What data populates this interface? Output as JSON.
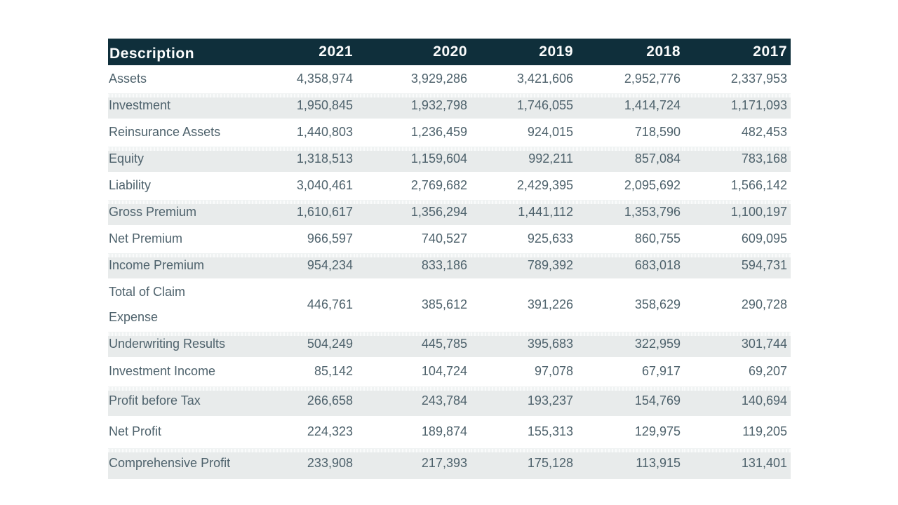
{
  "table": {
    "columns": [
      "Description",
      "2021",
      "2020",
      "2019",
      "2018",
      "2017"
    ],
    "rows": [
      {
        "label": "Assets",
        "values": [
          "4,358,974",
          "3,929,286",
          "3,421,606",
          "2,952,776",
          "2,337,953"
        ]
      },
      {
        "label": "Investment",
        "values": [
          "1,950,845",
          "1,932,798",
          "1,746,055",
          "1,414,724",
          "1,171,093"
        ]
      },
      {
        "label": "Reinsurance Assets",
        "values": [
          "1,440,803",
          "1,236,459",
          "924,015",
          "718,590",
          "482,453"
        ]
      },
      {
        "label": "Equity",
        "values": [
          "1,318,513",
          "1,159,604",
          "992,211",
          "857,084",
          "783,168"
        ]
      },
      {
        "label": "Liability",
        "values": [
          "3,040,461",
          "2,769,682",
          "2,429,395",
          "2,095,692",
          "1,566,142"
        ]
      },
      {
        "label": "Gross Premium",
        "values": [
          "1,610,617",
          "1,356,294",
          "1,441,112",
          "1,353,796",
          "1,100,197"
        ]
      },
      {
        "label": "Net Premium",
        "values": [
          "966,597",
          "740,527",
          "925,633",
          "860,755",
          "609,095"
        ]
      },
      {
        "label": "Income Premium",
        "values": [
          "954,234",
          "833,186",
          "789,392",
          "683,018",
          "594,731"
        ]
      },
      {
        "label": "Total of Claim Expense",
        "values": [
          "446,761",
          "385,612",
          "391,226",
          "358,629",
          "290,728"
        ]
      },
      {
        "label": "Underwriting Results",
        "values": [
          "504,249",
          "445,785",
          "395,683",
          "322,959",
          "301,744"
        ]
      },
      {
        "label": "Investment Income",
        "values": [
          "85,142",
          "104,724",
          "97,078",
          "67,917",
          "69,207"
        ]
      },
      {
        "label": "Profit before Tax",
        "values": [
          "266,658",
          "243,784",
          "193,237",
          "154,769",
          "140,694"
        ]
      },
      {
        "label": "Net Profit",
        "values": [
          "224,323",
          "189,874",
          "155,313",
          "129,975",
          "119,205"
        ]
      },
      {
        "label": "Comprehensive Profit",
        "values": [
          "233,908",
          "217,393",
          "175,128",
          "113,915",
          "131,401"
        ]
      }
    ]
  },
  "chart_data": {
    "type": "table",
    "categories": [
      "Assets",
      "Investment",
      "Reinsurance Assets",
      "Equity",
      "Liability",
      "Gross Premium",
      "Net Premium",
      "Income Premium",
      "Total of Claim Expense",
      "Underwriting Results",
      "Investment Income",
      "Profit before Tax",
      "Net Profit",
      "Comprehensive Profit"
    ],
    "series": [
      {
        "name": "2021",
        "values": [
          4358974,
          1950845,
          1440803,
          1318513,
          3040461,
          1610617,
          966597,
          954234,
          446761,
          504249,
          85142,
          266658,
          224323,
          233908
        ]
      },
      {
        "name": "2020",
        "values": [
          3929286,
          1932798,
          1236459,
          1159604,
          2769682,
          1356294,
          740527,
          833186,
          385612,
          445785,
          104724,
          243784,
          189874,
          217393
        ]
      },
      {
        "name": "2019",
        "values": [
          3421606,
          1746055,
          924015,
          992211,
          2429395,
          1441112,
          925633,
          789392,
          391226,
          395683,
          97078,
          193237,
          155313,
          175128
        ]
      },
      {
        "name": "2018",
        "values": [
          2952776,
          1414724,
          718590,
          857084,
          2095692,
          1353796,
          860755,
          683018,
          358629,
          322959,
          67917,
          154769,
          129975,
          113915
        ]
      },
      {
        "name": "2017",
        "values": [
          2337953,
          1171093,
          482453,
          783168,
          1566142,
          1100197,
          609095,
          594731,
          290728,
          301744,
          69207,
          140694,
          119205,
          131401
        ]
      }
    ],
    "first_column_header": "Description"
  },
  "colors": {
    "header_background": "#0f2f3b",
    "header_text": "#fbfcfc",
    "body_text": "#4e626c",
    "stripe_row": "#e8ebeb",
    "page_background": "#ffffff"
  }
}
